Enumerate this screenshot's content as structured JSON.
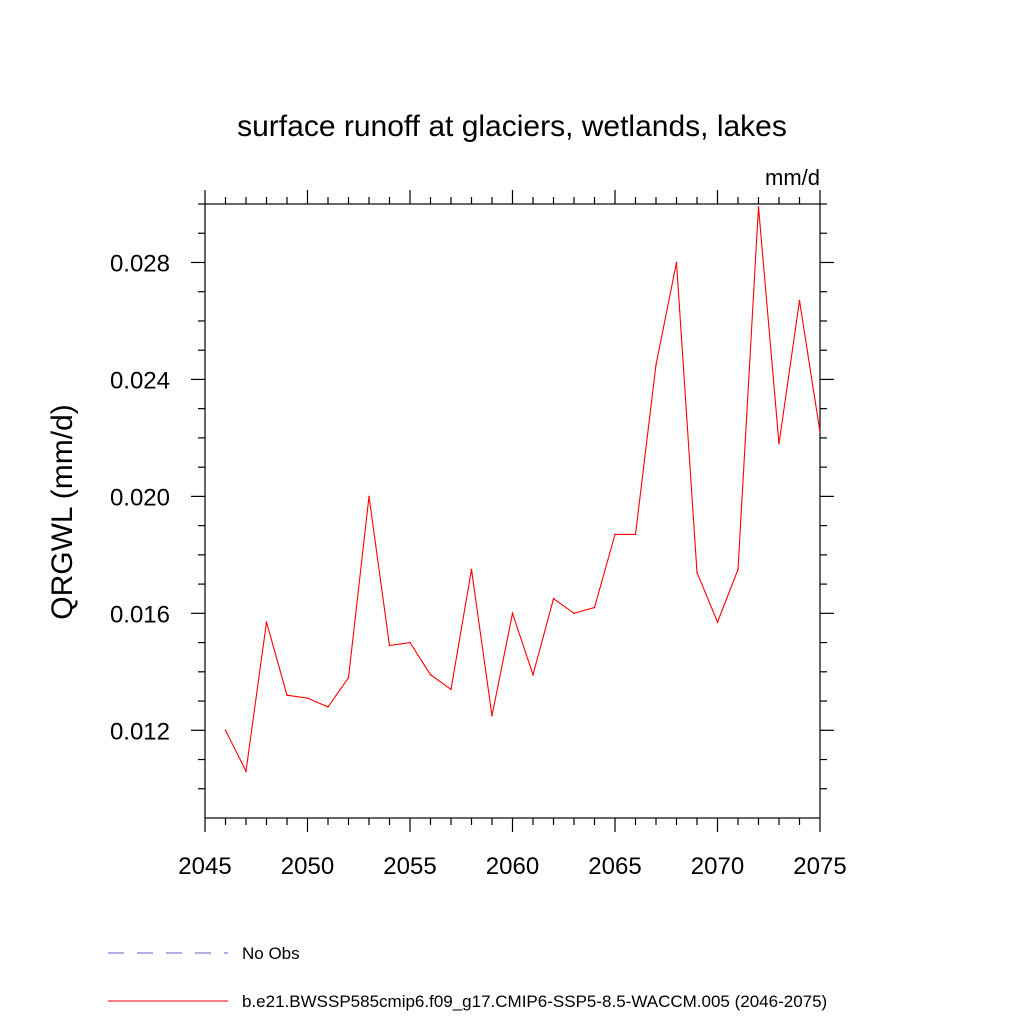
{
  "chart_data": {
    "type": "line",
    "title": "surface runoff at glaciers, wetlands, lakes",
    "units": "mm/d",
    "xlabel": "",
    "ylabel": "QRGWL  (mm/d)",
    "xlim": [
      2045,
      2075
    ],
    "ylim": [
      0.009,
      0.03
    ],
    "xticks": [
      2045,
      2050,
      2055,
      2060,
      2065,
      2070,
      2075
    ],
    "xtick_labels": [
      "2045",
      "2050",
      "2055",
      "2060",
      "2065",
      "2070",
      "2075"
    ],
    "yticks": [
      0.012,
      0.016,
      0.02,
      0.024,
      0.028
    ],
    "ytick_labels": [
      "0.012",
      "0.016",
      "0.020",
      "0.024",
      "0.028"
    ],
    "grid": false,
    "series": [
      {
        "name": "b.e21.BWSSP585cmip6.f09_g17.CMIP6-SSP5-8.5-WACCM.005 (2046-2075)",
        "color": "#ff0000",
        "x": [
          2046,
          2047,
          2048,
          2049,
          2050,
          2051,
          2052,
          2053,
          2054,
          2055,
          2056,
          2057,
          2058,
          2059,
          2060,
          2061,
          2062,
          2063,
          2064,
          2065,
          2066,
          2067,
          2068,
          2069,
          2070,
          2071,
          2072,
          2073,
          2074,
          2075
        ],
        "values": [
          0.012,
          0.0106,
          0.0157,
          0.0132,
          0.0131,
          0.0128,
          0.0138,
          0.02,
          0.0149,
          0.015,
          0.0139,
          0.0134,
          0.0175,
          0.0125,
          0.016,
          0.0139,
          0.0165,
          0.016,
          0.0162,
          0.0187,
          0.0187,
          0.0245,
          0.028,
          0.0174,
          0.0157,
          0.0175,
          0.0299,
          0.0218,
          0.0267,
          0.0222
        ]
      }
    ],
    "legend": [
      {
        "label": "No Obs",
        "style": "dashed",
        "color": "#6a5acd"
      },
      {
        "label": "b.e21.BWSSP585cmip6.f09_g17.CMIP6-SSP5-8.5-WACCM.005 (2046-2075)",
        "style": "solid",
        "color": "#ff0000"
      }
    ],
    "legend_position": "bottom-left"
  }
}
